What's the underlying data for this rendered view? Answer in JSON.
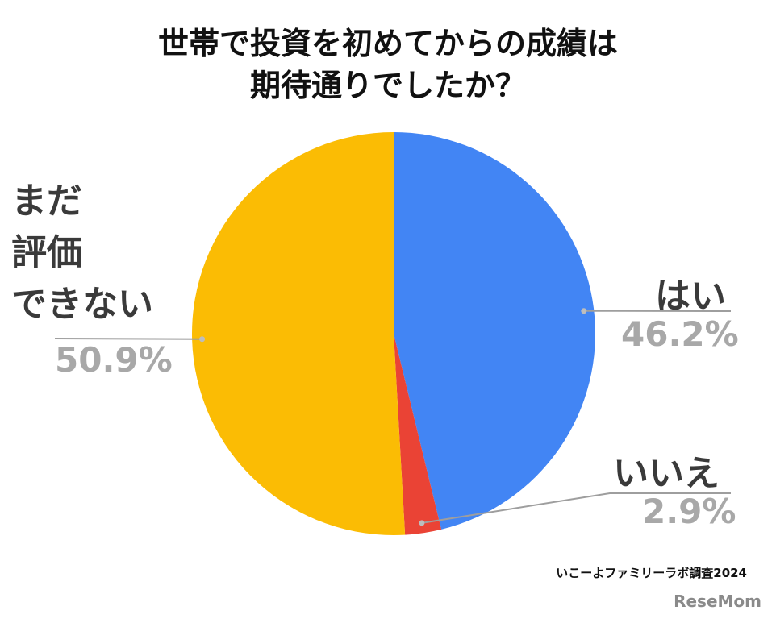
{
  "title_lines": [
    "世帯で投資を初めてからの成績は",
    "期待通りでしたか？"
  ],
  "chart_data": {
    "type": "pie",
    "title": "世帯で投資を初めてからの成績は期待通りでしたか？",
    "slices": [
      {
        "label": "はい",
        "value": 46.2,
        "value_label": "46.2%",
        "color": "#4285F4"
      },
      {
        "label": "いいえ",
        "value": 2.9,
        "value_label": "2.9%",
        "color": "#EA4335"
      },
      {
        "label_lines": [
          "まだ",
          "評価",
          "できない"
        ],
        "value": 50.9,
        "value_label": "50.9%",
        "color": "#FBBC04"
      }
    ],
    "start": "top",
    "direction": "clockwise",
    "legend": "none"
  },
  "source": "いこーよファミリーラボ調査2024",
  "brand": "ReseMom"
}
